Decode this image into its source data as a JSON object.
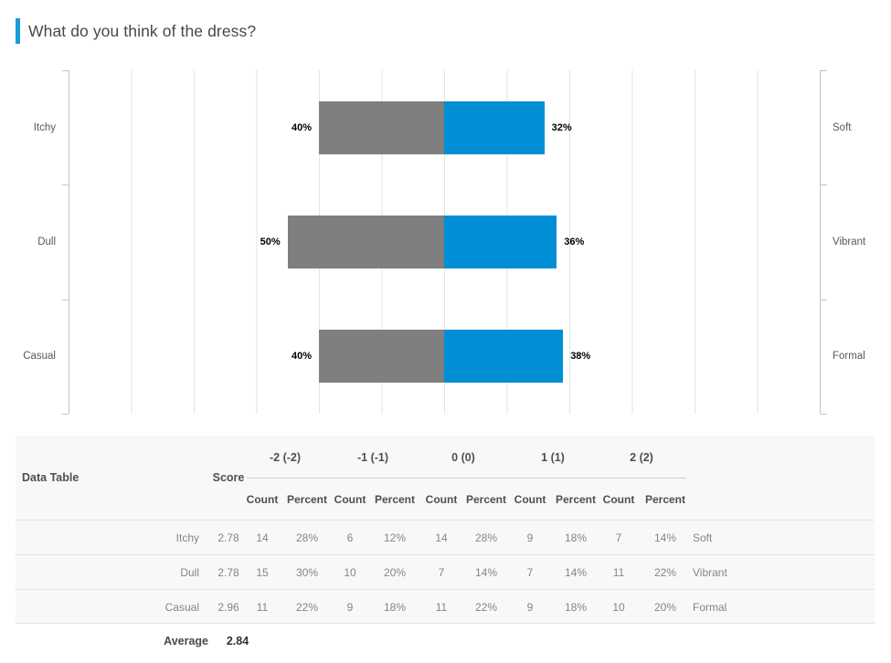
{
  "header": {
    "title": "What do you think of the dress?",
    "accent_color": "#1b9cd8"
  },
  "chart_data": {
    "type": "bar",
    "variant": "horizontal-diverging",
    "title": "What do you think of the dress?",
    "axis": {
      "center_value": 0,
      "gridline_step_pct": 20,
      "gridlines_per_side": 6,
      "max_pct_per_side": 120,
      "grid": true,
      "legend": "none"
    },
    "series": [
      {
        "name": "negative-side",
        "color": "#7f7f7f"
      },
      {
        "name": "positive-side",
        "color": "#008fd4"
      }
    ],
    "rows": [
      {
        "left_label": "Itchy",
        "right_label": "Soft",
        "left_pct": 40,
        "right_pct": 32,
        "left_text": "40%",
        "right_text": "32%"
      },
      {
        "left_label": "Dull",
        "right_label": "Vibrant",
        "left_pct": 50,
        "right_pct": 36,
        "left_text": "50%",
        "right_text": "36%"
      },
      {
        "left_label": "Casual",
        "right_label": "Formal",
        "left_pct": 40,
        "right_pct": 38,
        "left_text": "40%",
        "right_text": "38%"
      }
    ]
  },
  "table": {
    "title": "Data Table",
    "score_header": "Score",
    "group_headers": [
      "-2 (-2)",
      "-1 (-1)",
      "0 (0)",
      "1 (1)",
      "2 (2)"
    ],
    "sub_headers": [
      "Count",
      "Percent"
    ],
    "rows": [
      {
        "label": "Itchy",
        "score": "2.78",
        "cells": [
          "14",
          "28%",
          "6",
          "12%",
          "14",
          "28%",
          "9",
          "18%",
          "7",
          "14%"
        ],
        "side": "Soft"
      },
      {
        "label": "Dull",
        "score": "2.78",
        "cells": [
          "15",
          "30%",
          "10",
          "20%",
          "7",
          "14%",
          "7",
          "14%",
          "11",
          "22%"
        ],
        "side": "Vibrant"
      },
      {
        "label": "Casual",
        "score": "2.96",
        "cells": [
          "11",
          "22%",
          "9",
          "18%",
          "11",
          "22%",
          "9",
          "18%",
          "10",
          "20%"
        ],
        "side": "Formal"
      }
    ],
    "average": {
      "label": "Average",
      "value": "2.84"
    }
  }
}
